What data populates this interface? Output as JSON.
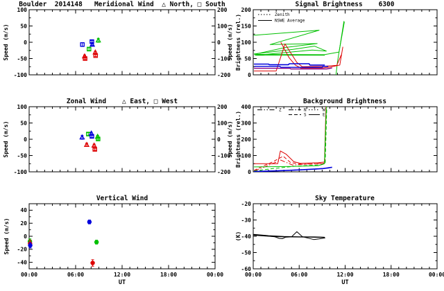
{
  "window": {
    "background": "#ffffff",
    "axis_color": "#000000"
  },
  "colors": {
    "blue": "#0000dd",
    "green": "#00c000",
    "red": "#dd0000",
    "purple": "#880088",
    "black": "#000000"
  },
  "x_axis": {
    "label": "UT",
    "tick_labels": [
      "00:00",
      "06:00",
      "12:00",
      "18:00",
      "00:00"
    ],
    "hours": [
      0,
      6,
      12,
      18,
      24
    ]
  },
  "chart_data": [
    {
      "id": "meridional-wind",
      "type": "scatter",
      "title": "Boulder  2014148   Meridional Wind  △ North, □ South",
      "ylabel": "Speed (m/s)",
      "xlim": [
        0,
        24
      ],
      "ylim": [
        -100,
        100
      ],
      "yticks": [
        -100,
        -50,
        0,
        50,
        100
      ],
      "right_axis": {
        "label": "Speed (m/s)",
        "lim": [
          -200,
          200
        ],
        "ticks": [
          -200,
          -100,
          0,
          100,
          200
        ]
      },
      "xticks": [
        0,
        6,
        12,
        18,
        24
      ],
      "xtick_labels": [],
      "xlabel": "",
      "points": [
        {
          "t": 6.87,
          "v": -7,
          "err": 6,
          "color": "blue",
          "marker": "square"
        },
        {
          "t": 8.1,
          "v": 2,
          "err": 3,
          "color": "blue",
          "marker": "square"
        },
        {
          "t": 8.15,
          "v": -7,
          "err": 3,
          "color": "blue",
          "marker": "triangle"
        },
        {
          "t": 7.73,
          "v": -21,
          "err": 4,
          "color": "green",
          "marker": "square"
        },
        {
          "t": 8.93,
          "v": 6,
          "err": 6,
          "color": "green",
          "marker": "triangle"
        },
        {
          "t": 7.16,
          "v": -43,
          "err": 4,
          "color": "red",
          "marker": "triangle"
        },
        {
          "t": 7.22,
          "v": -50,
          "err": 3,
          "color": "red",
          "marker": "square"
        },
        {
          "t": 8.54,
          "v": -31,
          "err": 3,
          "color": "red",
          "marker": "triangle"
        },
        {
          "t": 8.58,
          "v": -41,
          "err": 3,
          "color": "red",
          "marker": "square"
        }
      ]
    },
    {
      "id": "signal-brightness",
      "type": "line",
      "title": "Signal Brightness    6300",
      "ylabel": "Brightness (rel.)",
      "xlim": [
        0,
        24
      ],
      "ylim": [
        0,
        200
      ],
      "yticks": [
        0,
        50,
        100,
        150,
        200
      ],
      "xticks": [
        0,
        6,
        12,
        18,
        24
      ],
      "xtick_labels": [],
      "xlabel": "",
      "legend": [
        {
          "label": "Zenith",
          "dash": "dotted",
          "color": "black"
        },
        {
          "label": "NSWE Average",
          "dash": "solid",
          "color": "black"
        }
      ],
      "series": [
        {
          "color": "green",
          "dash": "solid",
          "width": 1,
          "pts": [
            [
              0.05,
              122
            ],
            [
              0.3,
              122
            ],
            [
              8.6,
              137
            ],
            [
              2.2,
              93
            ],
            [
              8.35,
              96
            ],
            [
              4.2,
              84
            ],
            [
              0.15,
              63
            ],
            [
              9.3,
              62
            ],
            [
              11.2,
              70
            ],
            [
              11.9,
              163
            ]
          ]
        },
        {
          "color": "green",
          "dash": "solid",
          "width": 1,
          "pts": [
            [
              11.85,
              165
            ],
            [
              11.0,
              40
            ],
            [
              10.8,
              0
            ]
          ]
        },
        {
          "color": "green",
          "dash": "solid",
          "width": 1,
          "pts": [
            [
              0.1,
              64
            ],
            [
              5.2,
              78
            ],
            [
              8.0,
              88
            ],
            [
              9.55,
              73
            ],
            [
              7.7,
              76
            ],
            [
              0.25,
              60
            ],
            [
              9.35,
              60
            ]
          ]
        },
        {
          "color": "red",
          "dash": "solid",
          "width": 1,
          "pts": [
            [
              3.6,
              100
            ],
            [
              4.7,
              52
            ],
            [
              5.5,
              30
            ],
            [
              6.2,
              21
            ],
            [
              8.9,
              21
            ],
            [
              10.1,
              24
            ],
            [
              11.3,
              30
            ],
            [
              11.7,
              86
            ]
          ]
        },
        {
          "color": "red",
          "dash": "solid",
          "width": 1,
          "pts": [
            [
              0.1,
              12
            ],
            [
              3.0,
              12
            ],
            [
              4.15,
              95
            ],
            [
              5.7,
              38
            ],
            [
              6.4,
              25
            ],
            [
              9.0,
              26
            ],
            [
              10.9,
              29
            ],
            [
              11.5,
              62
            ]
          ]
        },
        {
          "color": "blue",
          "dash": "solid",
          "width": 1.6,
          "pts": [
            [
              0.1,
              33
            ],
            [
              2.0,
              33
            ],
            [
              2.1,
              31
            ],
            [
              4.6,
              31
            ],
            [
              4.7,
              34
            ],
            [
              7.3,
              34
            ],
            [
              7.4,
              30
            ],
            [
              9.35,
              30
            ]
          ]
        },
        {
          "color": "blue",
          "dash": "solid",
          "width": 1.4,
          "pts": [
            [
              0.15,
              26
            ],
            [
              3.5,
              26
            ],
            [
              3.6,
              23
            ],
            [
              9.0,
              23
            ],
            [
              9.1,
              26
            ],
            [
              9.8,
              26
            ]
          ]
        },
        {
          "color": "purple",
          "dash": "solid",
          "width": 1.4,
          "pts": [
            [
              0.1,
              20
            ],
            [
              4.8,
              20
            ],
            [
              4.9,
              18
            ],
            [
              9.6,
              18
            ],
            [
              10.3,
              21
            ]
          ]
        }
      ]
    },
    {
      "id": "zonal-wind",
      "type": "scatter",
      "title": "Zonal Wind    △ East, □ West",
      "ylabel": "Speed (m/s)",
      "xlim": [
        0,
        24
      ],
      "ylim": [
        -100,
        100
      ],
      "yticks": [
        -100,
        -50,
        0,
        50,
        100
      ],
      "right_axis": {
        "label": "Speed (m/s)",
        "lim": [
          -200,
          200
        ],
        "ticks": [
          -200,
          -100,
          0,
          100,
          200
        ]
      },
      "xticks": [
        0,
        6,
        12,
        18,
        24
      ],
      "xtick_labels": [],
      "xlabel": "",
      "points": [
        {
          "t": 6.84,
          "v": 6,
          "err": 6,
          "color": "blue",
          "marker": "triangle"
        },
        {
          "t": 7.64,
          "v": 16,
          "err": 4,
          "color": "green",
          "marker": "square"
        },
        {
          "t": 8.03,
          "v": 18,
          "err": 3,
          "color": "blue",
          "marker": "triangle"
        },
        {
          "t": 8.1,
          "v": 9,
          "err": 3,
          "color": "blue",
          "marker": "square"
        },
        {
          "t": 8.84,
          "v": 8,
          "err": 4,
          "color": "green",
          "marker": "triangle"
        },
        {
          "t": 8.9,
          "v": 1,
          "err": 3,
          "color": "green",
          "marker": "square"
        },
        {
          "t": 7.43,
          "v": -17,
          "err": 5,
          "color": "red",
          "marker": "triangle"
        },
        {
          "t": 8.39,
          "v": -19,
          "err": 4,
          "color": "red",
          "marker": "triangle"
        },
        {
          "t": 8.48,
          "v": -31,
          "err": 3,
          "color": "red",
          "marker": "square"
        }
      ]
    },
    {
      "id": "background-brightness",
      "type": "line",
      "title": "Background Brightness",
      "ylabel": "Brightness (rel.)",
      "xlim": [
        0,
        24
      ],
      "ylim": [
        0,
        400
      ],
      "yticks": [
        0,
        100,
        200,
        300,
        400
      ],
      "xticks": [
        0,
        6,
        12,
        18,
        24
      ],
      "xtick_labels": [],
      "xlabel": "",
      "legend": [
        {
          "label": "Z",
          "dash": "dashdotdot",
          "color": "black"
        },
        {
          "label": "N",
          "dash": "dashdot",
          "color": "black"
        },
        {
          "label": "S",
          "dash": "dashed",
          "color": "black"
        },
        {
          "label": "W",
          "dash": "dotted",
          "color": "black"
        },
        {
          "label": "E",
          "dash": "solid",
          "color": "black"
        }
      ],
      "series": [
        {
          "color": "red",
          "dash": "solid",
          "width": 1,
          "pts": [
            [
              0.1,
              50
            ],
            [
              3.2,
              50
            ],
            [
              3.55,
              128
            ],
            [
              4.3,
              108
            ],
            [
              5.3,
              62
            ],
            [
              6.2,
              52
            ],
            [
              8.5,
              56
            ],
            [
              9.3,
              60
            ],
            [
              9.5,
              400
            ]
          ]
        },
        {
          "color": "red",
          "dash": "dashed",
          "width": 1,
          "pts": [
            [
              0.1,
              8
            ],
            [
              1.3,
              36
            ],
            [
              2.6,
              62
            ],
            [
              3.9,
              96
            ],
            [
              4.9,
              56
            ],
            [
              6.6,
              46
            ],
            [
              9.0,
              50
            ],
            [
              9.35,
              56
            ],
            [
              9.55,
              400
            ]
          ]
        },
        {
          "color": "red",
          "dash": "dashdot",
          "width": 1,
          "pts": [
            [
              0.15,
              5
            ],
            [
              2.1,
              42
            ],
            [
              3.6,
              72
            ],
            [
              5.1,
              42
            ],
            [
              7.1,
              48
            ],
            [
              9.3,
              52
            ]
          ]
        },
        {
          "color": "green",
          "dash": "solid",
          "width": 1,
          "pts": [
            [
              0.1,
              30
            ],
            [
              5.0,
              33
            ],
            [
              8.5,
              38
            ],
            [
              9.3,
              50
            ],
            [
              9.55,
              400
            ]
          ]
        },
        {
          "color": "green",
          "dash": "dashed",
          "width": 1,
          "pts": [
            [
              0.1,
              5
            ],
            [
              2.6,
              20
            ],
            [
              5.6,
              35
            ],
            [
              8.8,
              42
            ],
            [
              9.4,
              52
            ],
            [
              9.6,
              395
            ]
          ]
        },
        {
          "color": "blue",
          "dash": "solid",
          "width": 1.6,
          "pts": [
            [
              0.1,
              2
            ],
            [
              3.1,
              6
            ],
            [
              6.1,
              12
            ],
            [
              9.1,
              20
            ],
            [
              10.3,
              28
            ]
          ]
        },
        {
          "color": "blue",
          "dash": "dashed",
          "width": 1.2,
          "pts": [
            [
              0.1,
              0
            ],
            [
              4.1,
              8
            ],
            [
              8.1,
              16
            ],
            [
              10.2,
              25
            ]
          ]
        }
      ]
    },
    {
      "id": "vertical-wind",
      "type": "scatter",
      "title": "Vertical Wind",
      "ylabel": "Speed (m/s)",
      "xlim": [
        0,
        24
      ],
      "ylim": [
        -50,
        50
      ],
      "yticks": [
        -40,
        -20,
        0,
        20,
        40
      ],
      "xticks": [
        0,
        6,
        12,
        18,
        24
      ],
      "xtick_labels": [
        "00:00",
        "06:00",
        "12:00",
        "18:00",
        "00:00"
      ],
      "xlabel": "UT",
      "points": [
        {
          "t": 0.1,
          "v": -8,
          "err": 4,
          "color": "green",
          "marker": "circle"
        },
        {
          "t": 0.12,
          "v": -11,
          "err": 5,
          "color": "red",
          "marker": "circle"
        },
        {
          "t": 0.14,
          "v": -14,
          "err": 4,
          "color": "blue",
          "marker": "circle"
        },
        {
          "t": 7.78,
          "v": 22,
          "err": 3,
          "color": "blue",
          "marker": "circle"
        },
        {
          "t": 8.7,
          "v": -9,
          "err": 3,
          "color": "green",
          "marker": "circle"
        },
        {
          "t": 8.2,
          "v": -41,
          "err": 5,
          "color": "red",
          "marker": "circle"
        }
      ]
    },
    {
      "id": "sky-temperature",
      "type": "line",
      "title": "Sky Temperature",
      "ylabel": "(K)",
      "xlim": [
        0,
        24
      ],
      "ylim": [
        -60,
        -20
      ],
      "yticks": [
        -60,
        -50,
        -40,
        -30,
        -20
      ],
      "xticks": [
        0,
        6,
        12,
        18,
        24
      ],
      "xtick_labels": [
        "00:00",
        "06:00",
        "12:00",
        "18:00",
        "00:00"
      ],
      "xlabel": "UT",
      "series": [
        {
          "color": "black",
          "dash": "solid",
          "width": 1,
          "pts": [
            [
              0.05,
              -39
            ],
            [
              0.8,
              -39.3
            ],
            [
              1.8,
              -39.8
            ],
            [
              2.8,
              -40.3
            ],
            [
              3.4,
              -41.3
            ],
            [
              3.8,
              -41.5
            ],
            [
              4.2,
              -40.6
            ],
            [
              5.0,
              -40.4
            ],
            [
              5.7,
              -37.2
            ],
            [
              6.4,
              -40.2
            ],
            [
              7.2,
              -41.2
            ],
            [
              7.9,
              -42
            ],
            [
              8.6,
              -41.6
            ],
            [
              9.4,
              -41
            ]
          ]
        },
        {
          "color": "black",
          "dash": "solid",
          "width": 1.2,
          "pts": [
            [
              0.05,
              -39.3
            ],
            [
              1.5,
              -39.8
            ],
            [
              3.0,
              -40.2
            ],
            [
              5.0,
              -40.4
            ],
            [
              7.0,
              -40.5
            ],
            [
              9.3,
              -40.7
            ]
          ]
        },
        {
          "color": "black",
          "dash": "solid",
          "width": 1,
          "pts": [
            [
              0.05,
              -38.8
            ],
            [
              2.0,
              -39.6
            ],
            [
              4.0,
              -40.1
            ],
            [
              6.0,
              -40.3
            ],
            [
              8.0,
              -40.4
            ],
            [
              9.35,
              -40.6
            ]
          ]
        }
      ]
    }
  ]
}
